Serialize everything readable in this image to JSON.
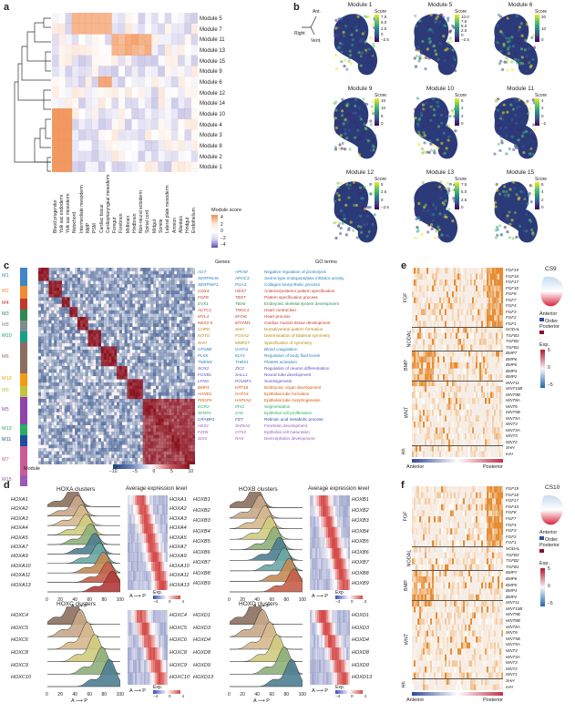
{
  "panels": {
    "a": "a",
    "b": "b",
    "c": "c",
    "d": "d",
    "e": "e",
    "f": "f"
  },
  "panel_a": {
    "modules": [
      "Module 5",
      "Module 7",
      "Module 11",
      "Module 13",
      "Module 15",
      "Module 9",
      "Module 6",
      "Module 12",
      "Module 14",
      "Module 10",
      "Module 4",
      "Module 3",
      "Module 8",
      "Module 2",
      "Module 1"
    ],
    "columns": [
      "Blood progenitor",
      "Yolk sac endoderm",
      "Yolk sac mesoderm",
      "Notochord",
      "Intermediate mesoderm",
      "NMP",
      "PSM",
      "Cardiac tissue",
      "Cardiopharyngeal mesoderm",
      "Foregut",
      "Forebrain",
      "Midbrain",
      "Hindbrain",
      "Non-neural ectoderm",
      "Spinal cord",
      "Midgut",
      "Somite",
      "Lateral plate mesoderm",
      "Amnion",
      "Allantois",
      "Hindgut",
      "Endothelium"
    ],
    "legend_title": "Module score",
    "legend_ticks": [
      "4",
      "2",
      "0",
      "−2",
      "−4"
    ]
  },
  "panel_b": {
    "axis": {
      "ant": "Ant.",
      "right": "Right",
      "vent": "Vent."
    },
    "umaps": [
      {
        "title": "Module 1",
        "scale": "Score",
        "ticks": [
          "7.5",
          "5.0",
          "2.5",
          "0",
          "−2.5"
        ]
      },
      {
        "title": "Module 5",
        "scale": "Score",
        "ticks": [
          "10.0",
          "7.5",
          "5.0",
          "2.5",
          "0",
          "−2.5"
        ]
      },
      {
        "title": "Module 6",
        "scale": "Score",
        "ticks": [
          "20",
          "10",
          "0"
        ]
      },
      {
        "title": "Module 9",
        "scale": "Score",
        "ticks": [
          "15",
          "10",
          "5",
          "0"
        ]
      },
      {
        "title": "Module 10",
        "scale": "Score",
        "ticks": [
          "6",
          "4",
          "2",
          "0"
        ]
      },
      {
        "title": "Module 11",
        "scale": "Score",
        "ticks": [
          "4",
          "2",
          "0",
          "−2"
        ]
      },
      {
        "title": "Module 12",
        "scale": "Score",
        "ticks": [
          "5",
          "2.5",
          "0",
          "−2.5"
        ]
      },
      {
        "title": "Module 13",
        "scale": "Score",
        "ticks": [
          "7.5",
          "5.0",
          "2.5",
          "0"
        ]
      },
      {
        "title": "Module 15",
        "scale": "Score",
        "ticks": [
          "6",
          "4",
          "2",
          "0"
        ]
      }
    ]
  },
  "panel_c": {
    "modules": [
      "M1",
      "M2",
      "M4",
      "M3",
      "M8",
      "M10",
      "M6",
      "M12",
      "M9",
      "M5",
      "M13",
      "M11",
      "M7",
      "M15"
    ],
    "module_footer": "Module",
    "genes_title": "Genes",
    "go_title": "GO terms",
    "genes_left": [
      "AGT",
      "SERPINA6",
      "SERPINF1",
      "CDX4",
      "FGF8",
      "EVX1",
      "ACTC1",
      "MYL4",
      "NKX2-5",
      "CHRD",
      "NOTO",
      "SHH",
      "GP1BB",
      "PLEK",
      "TMEM1",
      "SOX2",
      "FOXB1",
      "LFNG",
      "BMP4",
      "HAND1",
      "PDGFA",
      "EGR2",
      "SFRP1",
      "CRABP1",
      "HES1",
      "FZD5",
      "SIX3"
    ],
    "genes_right": [
      "APOM",
      "APOC3",
      "PGA3",
      "HES7",
      "TBXT",
      "TBX6",
      "TNNC1",
      "MYH6",
      "MYOM1",
      "SHH",
      "FOXA2",
      "MMP27",
      "GATA1",
      "KLF1",
      "THBS1",
      "ZIC2",
      "SALL1",
      "POU5F1",
      "KRT18",
      "GATA3",
      "HAPLN1",
      "IRX2",
      "ZAK",
      "FST",
      "SHISA2",
      "OTX2",
      "RAX"
    ],
    "go_terms": [
      "Negative regulation of proteolysis",
      "Serine-type endopeptidase inhibitor activity",
      "Collagen biosynthetic process",
      "Anterior/posterior pattern specification",
      "Pattern specification process",
      "Embryonic skeletal system development",
      "Heart contraction",
      "Heart process",
      "Cardiac muscle tissue development",
      "Dorsal/ventral pattern formation",
      "Determination of bilateral symmetry",
      "Specification of symmetry",
      "Blood coagulation",
      "Regulation of body fluid levels",
      "Platelet activation",
      "Regulation of neuron differentiation",
      "Neural tube development",
      "Somitogenesis",
      "Embryonic organ development",
      "Epithelial tube formation",
      "Epithelial tube morphogenesis",
      "Segmentation",
      "Epithelial cell proliferation",
      "Retinoic acid metabolic process",
      "Forebrain development",
      "Epithelial cell maturation",
      "Diencephalon development"
    ],
    "colorbar_ticks": [
      "−10",
      "−5",
      "0",
      "5",
      "10"
    ]
  },
  "panel_d": {
    "groups": [
      {
        "title": "HOXA clusters",
        "genes": [
          "HOXA1",
          "HOXA2",
          "HOXA3",
          "HOXA4",
          "HOXA5",
          "HOXA7",
          "HOXA9",
          "HOXA10",
          "HOXA11",
          "HOXA13"
        ]
      },
      {
        "title": "HOXB clusters",
        "genes": [
          "HOXB1",
          "HOXB2",
          "HOXB3",
          "HOXB4",
          "HOXB5",
          "HOXB6",
          "HOXB7",
          "HOXB8",
          "HOXB9"
        ]
      },
      {
        "title": "HOXC clusters",
        "genes": [
          "HOXC4",
          "HOXC5",
          "HOXC6",
          "HOXC8",
          "HOXC9",
          "HOXC10"
        ]
      },
      {
        "title": "HOXD clusters",
        "genes": [
          "HOXD1",
          "HOXD3",
          "HOXD4",
          "HOXD8",
          "HOXD9",
          "HOXD13"
        ]
      }
    ],
    "avg_title": "Average expression level",
    "x_ticks": [
      "0",
      "20",
      "40",
      "60",
      "80",
      "100"
    ],
    "axis_ap": "A ⟶ P",
    "exp_label": "Exp.",
    "exp_ticks_a": [
      "−4",
      "0",
      "4"
    ],
    "exp_ticks_b": [
      "−3",
      "0",
      "3"
    ]
  },
  "panel_e": {
    "stage": "CS9",
    "groups": [
      "FGF",
      "NODAL",
      "BMP",
      "WNT",
      "Hh"
    ],
    "genes": [
      "FGF19",
      "FGF18",
      "FGF17",
      "FGF10",
      "FGF8",
      "FGF7",
      "FGF4",
      "FGF3",
      "FGF2",
      "FGF1",
      "NODAL",
      "TGFB3",
      "TGFB2",
      "TGFB1",
      "BMP7",
      "BMP6",
      "BMP5",
      "BMP4",
      "BMP2",
      "WNT11",
      "WNT10B",
      "WNT9B",
      "WNT8A",
      "WNT6",
      "WNT5B",
      "WNT5A",
      "WNT4",
      "WNT3A",
      "WNT3",
      "WNT2",
      "SHH",
      "IHH"
    ],
    "order_label": "Order",
    "anterior": "Anterior",
    "posterior": "Posterior",
    "exp_label": "Exp.",
    "exp_ticks": [
      "5",
      "0",
      "−5"
    ]
  },
  "panel_f": {
    "stage": "CS10",
    "groups": [
      "FGF",
      "NODAL",
      "BMP",
      "WNT",
      "Hh"
    ],
    "genes": [
      "FGF19",
      "FGF18",
      "FGF17",
      "FGF10",
      "FGF8",
      "FGF7",
      "FGF4",
      "FGF3",
      "FGF2",
      "FGF1",
      "NODAL",
      "TGFB3",
      "TGFB2",
      "TGFB1",
      "BMP7",
      "BMP6",
      "BMP5",
      "BMP4",
      "BMP2",
      "WNT11",
      "WNT10B",
      "WNT9B",
      "WNT8B",
      "WNT8A",
      "WNT6",
      "WNT5B",
      "WNT5A",
      "WNT4",
      "WNT3A",
      "WNT3",
      "WNT2",
      "WNT1",
      "SHH",
      "IHH"
    ],
    "order_label": "Order",
    "anterior": "Anterior",
    "posterior": "Posterior",
    "exp_label": "Exp.",
    "exp_ticks": [
      "5",
      "0",
      "−5"
    ]
  }
}
